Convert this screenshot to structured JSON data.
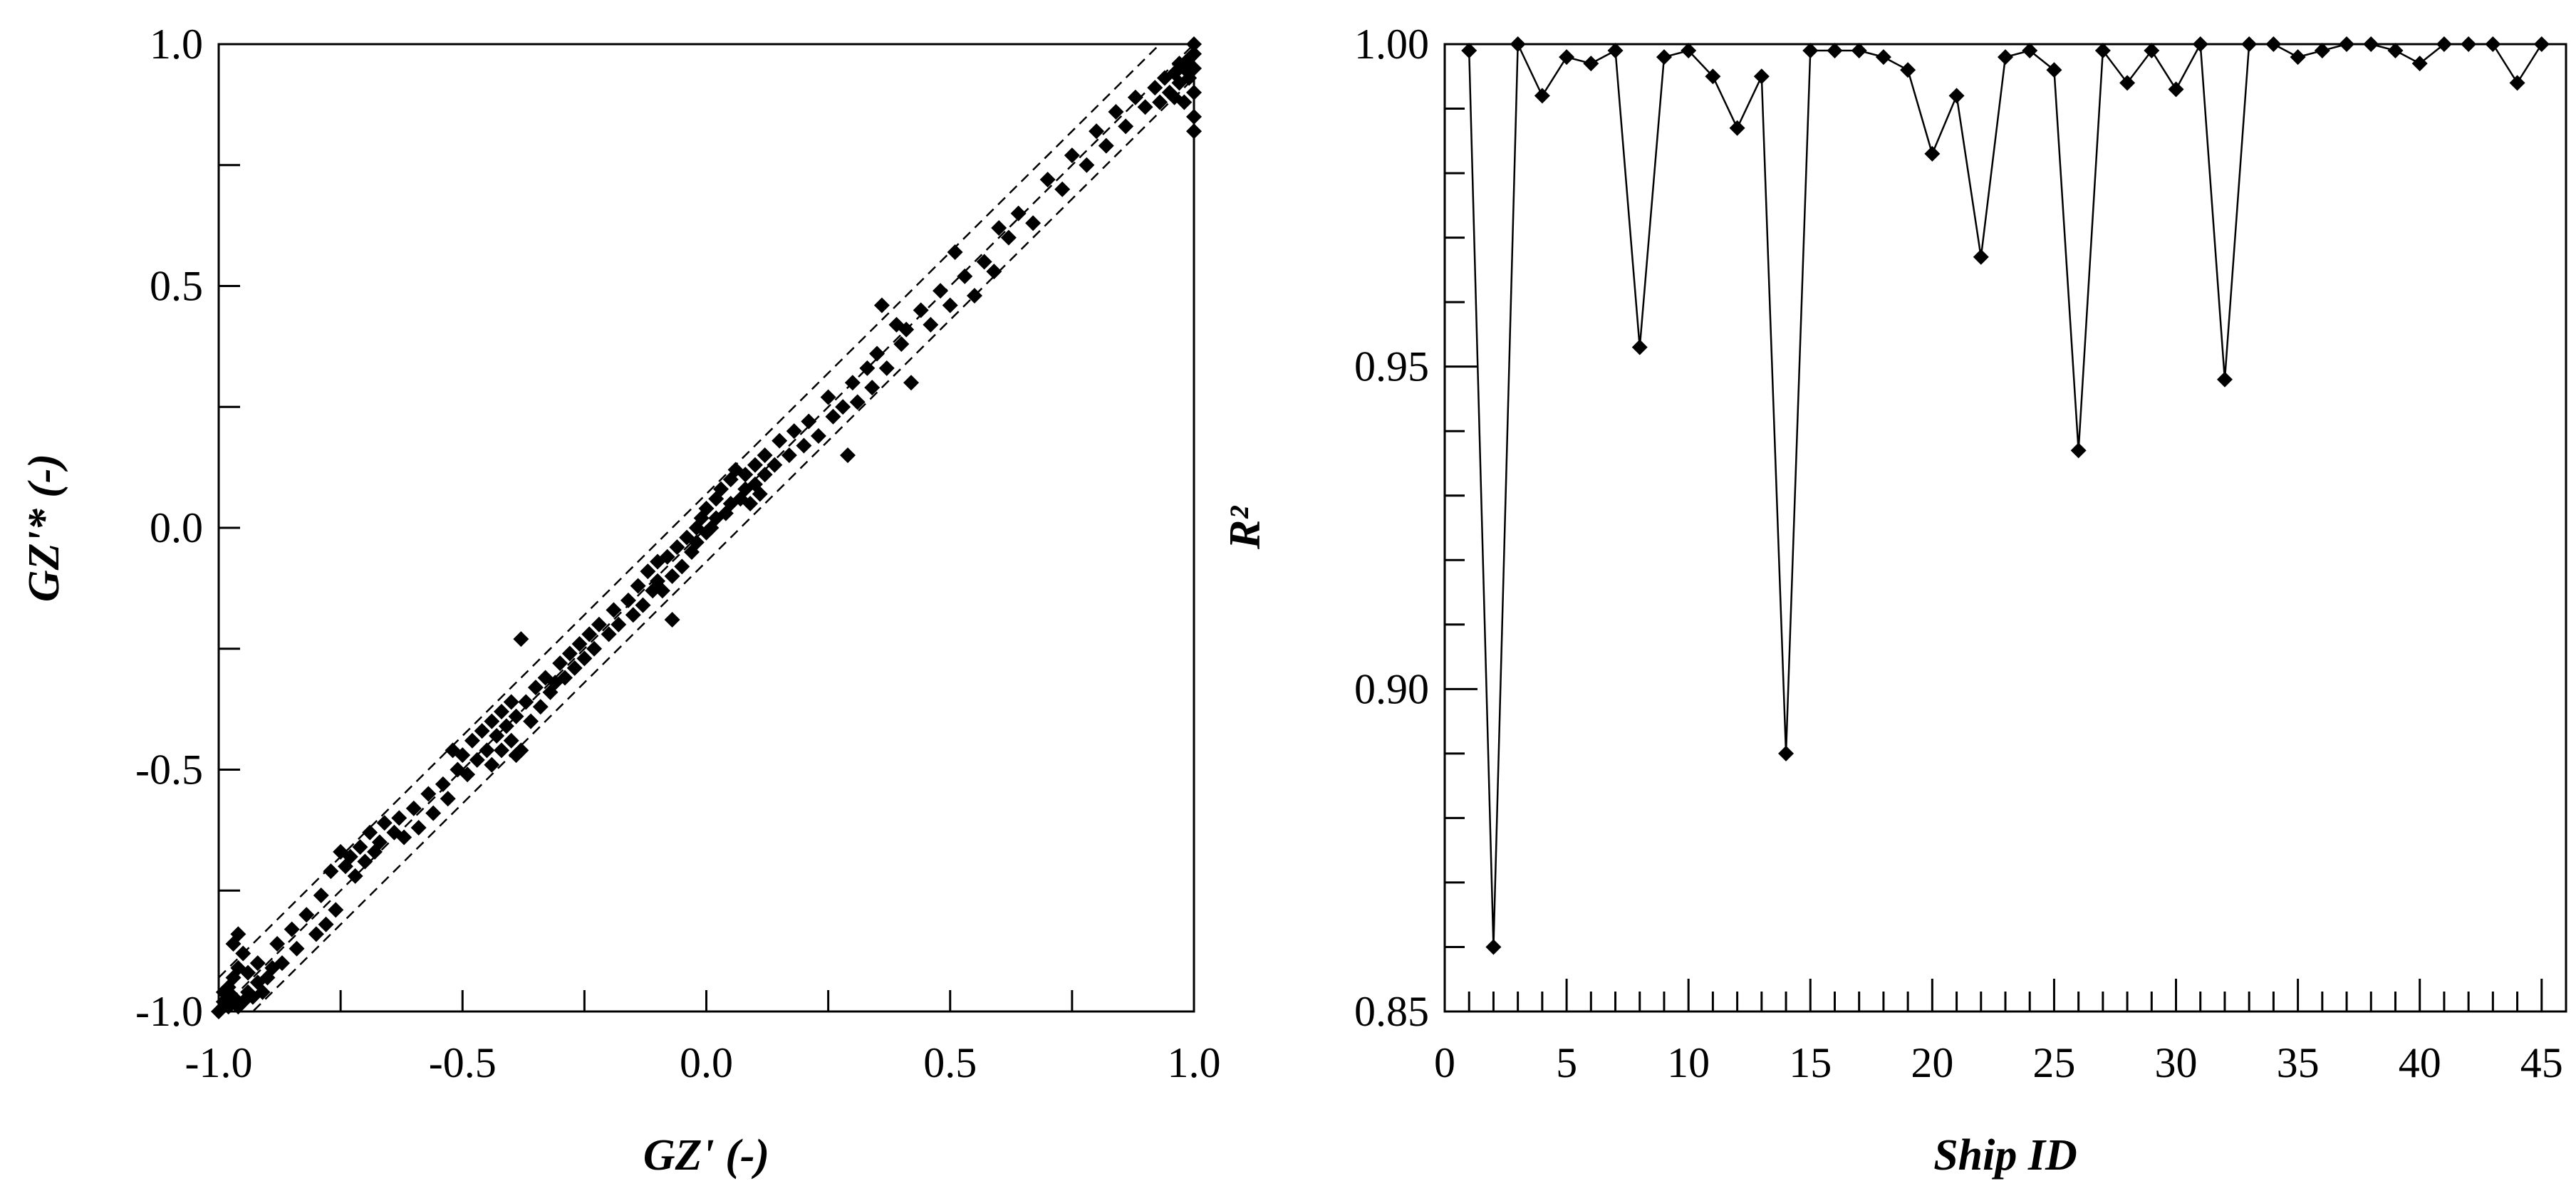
{
  "chart_data": [
    {
      "type": "scatter",
      "xlabel": "GZ' (-)",
      "ylabel": "GZ'* (-)",
      "xlim": [
        -1.0,
        1.0
      ],
      "ylim": [
        -1.0,
        1.0
      ],
      "xticks": [
        -1.0,
        -0.5,
        0.0,
        0.5,
        1.0
      ],
      "xtick_labels": [
        "-1.0",
        "-0.5",
        "0.0",
        "0.5",
        "1.0"
      ],
      "yticks": [
        -1.0,
        -0.5,
        0.0,
        0.5,
        1.0
      ],
      "ytick_labels": [
        "-1.0",
        "-0.5",
        "0.0",
        "0.5",
        "1.0"
      ],
      "grid": false,
      "reference_lines": [
        {
          "style": "dashed",
          "points": [
            [
              -1.0,
              -1.0
            ],
            [
              1.0,
              1.0
            ]
          ]
        },
        {
          "style": "dashed",
          "points": [
            [
              -1.0,
              -0.93
            ],
            [
              1.0,
              1.07
            ]
          ]
        },
        {
          "style": "dashed",
          "points": [
            [
              -1.0,
              -1.07
            ],
            [
              1.0,
              0.93
            ]
          ]
        }
      ],
      "points": [
        [
          -1.0,
          -1.0
        ],
        [
          -0.99,
          -0.98
        ],
        [
          -0.99,
          -0.96
        ],
        [
          -0.98,
          -0.99
        ],
        [
          -0.98,
          -0.95
        ],
        [
          -0.97,
          -0.97
        ],
        [
          -0.97,
          -0.93
        ],
        [
          -0.96,
          -0.99
        ],
        [
          -0.96,
          -0.91
        ],
        [
          -0.95,
          -0.98
        ],
        [
          -0.95,
          -0.88
        ],
        [
          -0.97,
          -0.86
        ],
        [
          -0.94,
          -0.96
        ],
        [
          -0.94,
          -0.92
        ],
        [
          -0.93,
          -0.97
        ],
        [
          -0.92,
          -0.94
        ],
        [
          -0.92,
          -0.9
        ],
        [
          -0.91,
          -0.96
        ],
        [
          -0.9,
          -0.93
        ],
        [
          -0.89,
          -0.91
        ],
        [
          -0.88,
          -0.86
        ],
        [
          -0.87,
          -0.9
        ],
        [
          -0.85,
          -0.83
        ],
        [
          -0.84,
          -0.87
        ],
        [
          -0.82,
          -0.8
        ],
        [
          -0.8,
          -0.84
        ],
        [
          -0.79,
          -0.76
        ],
        [
          -0.78,
          -0.82
        ],
        [
          -0.77,
          -0.71
        ],
        [
          -0.76,
          -0.79
        ],
        [
          -0.75,
          -0.67
        ],
        [
          -0.74,
          -0.7
        ],
        [
          -0.73,
          -0.68
        ],
        [
          -0.72,
          -0.72
        ],
        [
          -0.71,
          -0.66
        ],
        [
          -0.7,
          -0.69
        ],
        [
          -0.69,
          -0.63
        ],
        [
          -0.68,
          -0.67
        ],
        [
          -0.67,
          -0.65
        ],
        [
          -0.66,
          -0.61
        ],
        [
          -0.64,
          -0.63
        ],
        [
          -0.63,
          -0.6
        ],
        [
          -0.62,
          -0.64
        ],
        [
          -0.6,
          -0.58
        ],
        [
          -0.59,
          -0.62
        ],
        [
          -0.57,
          -0.55
        ],
        [
          -0.56,
          -0.59
        ],
        [
          -0.54,
          -0.53
        ],
        [
          -0.53,
          -0.56
        ],
        [
          -0.52,
          -0.46
        ],
        [
          -0.51,
          -0.5
        ],
        [
          -0.5,
          -0.47
        ],
        [
          -0.49,
          -0.51
        ],
        [
          -0.48,
          -0.44
        ],
        [
          -0.47,
          -0.48
        ],
        [
          -0.46,
          -0.42
        ],
        [
          -0.45,
          -0.46
        ],
        [
          -0.44,
          -0.4
        ],
        [
          -0.44,
          -0.49
        ],
        [
          -0.43,
          -0.43
        ],
        [
          -0.42,
          -0.38
        ],
        [
          -0.42,
          -0.46
        ],
        [
          -0.41,
          -0.41
        ],
        [
          -0.4,
          -0.36
        ],
        [
          -0.4,
          -0.44
        ],
        [
          -0.39,
          -0.39
        ],
        [
          -0.38,
          -0.23
        ],
        [
          -0.38,
          -0.46
        ],
        [
          -0.37,
          -0.36
        ],
        [
          -0.36,
          -0.4
        ],
        [
          -0.35,
          -0.33
        ],
        [
          -0.34,
          -0.37
        ],
        [
          -0.33,
          -0.31
        ],
        [
          -0.32,
          -0.34
        ],
        [
          -0.31,
          -0.32
        ],
        [
          -0.3,
          -0.28
        ],
        [
          -0.29,
          -0.31
        ],
        [
          -0.28,
          -0.26
        ],
        [
          -0.27,
          -0.29
        ],
        [
          -0.26,
          -0.24
        ],
        [
          -0.25,
          -0.27
        ],
        [
          -0.24,
          -0.22
        ],
        [
          -0.23,
          -0.25
        ],
        [
          -0.22,
          -0.2
        ],
        [
          -0.2,
          -0.22
        ],
        [
          -0.19,
          -0.17
        ],
        [
          -0.18,
          -0.2
        ],
        [
          -0.16,
          -0.15
        ],
        [
          -0.15,
          -0.18
        ],
        [
          -0.14,
          -0.12
        ],
        [
          -0.13,
          -0.16
        ],
        [
          -0.12,
          -0.09
        ],
        [
          -0.11,
          -0.13
        ],
        [
          -0.1,
          -0.07
        ],
        [
          -0.1,
          -0.11
        ],
        [
          -0.09,
          -0.13
        ],
        [
          -0.08,
          -0.06
        ],
        [
          -0.07,
          -0.1
        ],
        [
          -0.07,
          -0.19
        ],
        [
          -0.06,
          -0.04
        ],
        [
          -0.05,
          -0.08
        ],
        [
          -0.04,
          -0.02
        ],
        [
          -0.03,
          -0.05
        ],
        [
          -0.02,
          0.0
        ],
        [
          -0.02,
          -0.03
        ],
        [
          -0.01,
          0.02
        ],
        [
          0.0,
          -0.01
        ],
        [
          0.0,
          0.04
        ],
        [
          0.01,
          0.0
        ],
        [
          0.02,
          0.06
        ],
        [
          0.02,
          0.02
        ],
        [
          0.03,
          0.08
        ],
        [
          0.04,
          0.03
        ],
        [
          0.05,
          0.1
        ],
        [
          0.05,
          0.05
        ],
        [
          0.06,
          0.12
        ],
        [
          0.07,
          0.06
        ],
        [
          0.08,
          0.11
        ],
        [
          0.08,
          0.08
        ],
        [
          0.09,
          0.05
        ],
        [
          0.1,
          0.13
        ],
        [
          0.1,
          0.09
        ],
        [
          0.11,
          0.07
        ],
        [
          0.12,
          0.15
        ],
        [
          0.12,
          0.11
        ],
        [
          0.14,
          0.13
        ],
        [
          0.15,
          0.18
        ],
        [
          0.17,
          0.15
        ],
        [
          0.18,
          0.2
        ],
        [
          0.2,
          0.17
        ],
        [
          0.21,
          0.22
        ],
        [
          0.23,
          0.19
        ],
        [
          0.25,
          0.27
        ],
        [
          0.26,
          0.23
        ],
        [
          0.28,
          0.25
        ],
        [
          0.29,
          0.15
        ],
        [
          0.3,
          0.3
        ],
        [
          0.31,
          0.26
        ],
        [
          0.33,
          0.33
        ],
        [
          0.34,
          0.29
        ],
        [
          0.35,
          0.36
        ],
        [
          0.36,
          0.46
        ],
        [
          0.37,
          0.33
        ],
        [
          0.39,
          0.42
        ],
        [
          0.4,
          0.38
        ],
        [
          0.41,
          0.41
        ],
        [
          0.42,
          0.3
        ],
        [
          0.44,
          0.45
        ],
        [
          0.46,
          0.42
        ],
        [
          0.48,
          0.49
        ],
        [
          0.5,
          0.46
        ],
        [
          0.51,
          0.57
        ],
        [
          0.53,
          0.52
        ],
        [
          0.55,
          0.48
        ],
        [
          0.57,
          0.55
        ],
        [
          0.59,
          0.53
        ],
        [
          0.6,
          0.62
        ],
        [
          0.62,
          0.6
        ],
        [
          0.64,
          0.65
        ],
        [
          0.67,
          0.63
        ],
        [
          0.7,
          0.72
        ],
        [
          0.73,
          0.7
        ],
        [
          0.75,
          0.77
        ],
        [
          0.78,
          0.75
        ],
        [
          0.8,
          0.82
        ],
        [
          0.82,
          0.79
        ],
        [
          0.84,
          0.86
        ],
        [
          0.86,
          0.83
        ],
        [
          0.88,
          0.89
        ],
        [
          0.9,
          0.87
        ],
        [
          0.92,
          0.91
        ],
        [
          0.93,
          0.88
        ],
        [
          0.94,
          0.93
        ],
        [
          0.95,
          0.9
        ],
        [
          0.96,
          0.94
        ],
        [
          0.96,
          0.89
        ],
        [
          0.97,
          0.92
        ],
        [
          0.98,
          0.95
        ],
        [
          0.98,
          0.88
        ],
        [
          0.99,
          0.97
        ],
        [
          0.99,
          0.93
        ],
        [
          1.0,
          1.0
        ],
        [
          1.0,
          0.98
        ],
        [
          1.0,
          0.95
        ],
        [
          1.0,
          0.9
        ],
        [
          1.0,
          0.85
        ],
        [
          1.0,
          0.82
        ],
        [
          0.97,
          0.96
        ],
        [
          -0.96,
          -0.84
        ],
        [
          -0.39,
          -0.47
        ]
      ]
    },
    {
      "type": "line",
      "xlabel": "Ship ID",
      "ylabel": "R²",
      "xlim": [
        0,
        46
      ],
      "ylim": [
        0.85,
        1.0
      ],
      "xticks": [
        0,
        5,
        10,
        15,
        20,
        25,
        30,
        35,
        40,
        45
      ],
      "xtick_labels": [
        "0",
        "5",
        "10",
        "15",
        "20",
        "25",
        "30",
        "35",
        "40",
        "45"
      ],
      "yticks": [
        0.85,
        0.9,
        0.95,
        1.0
      ],
      "ytick_labels": [
        "0.85",
        "0.90",
        "0.95",
        "1.00"
      ],
      "grid": false,
      "x": [
        1,
        2,
        3,
        4,
        5,
        6,
        7,
        8,
        9,
        10,
        11,
        12,
        13,
        14,
        15,
        16,
        17,
        18,
        19,
        20,
        21,
        22,
        23,
        24,
        25,
        26,
        27,
        28,
        29,
        30,
        31,
        32,
        33,
        34,
        35,
        36,
        37,
        38,
        39,
        40,
        41,
        42,
        43,
        44,
        45
      ],
      "y": [
        0.999,
        0.86,
        1.0,
        0.992,
        0.998,
        0.997,
        0.999,
        0.953,
        0.998,
        0.999,
        0.995,
        0.987,
        0.995,
        0.89,
        0.999,
        0.999,
        0.999,
        0.998,
        0.996,
        0.983,
        0.992,
        0.967,
        0.998,
        0.999,
        0.996,
        0.937,
        0.999,
        0.994,
        0.999,
        0.993,
        1.0,
        0.948,
        1.0,
        1.0,
        0.998,
        0.999,
        1.0,
        1.0,
        0.999,
        0.997,
        1.0,
        1.0,
        1.0,
        0.994,
        1.0
      ]
    }
  ]
}
